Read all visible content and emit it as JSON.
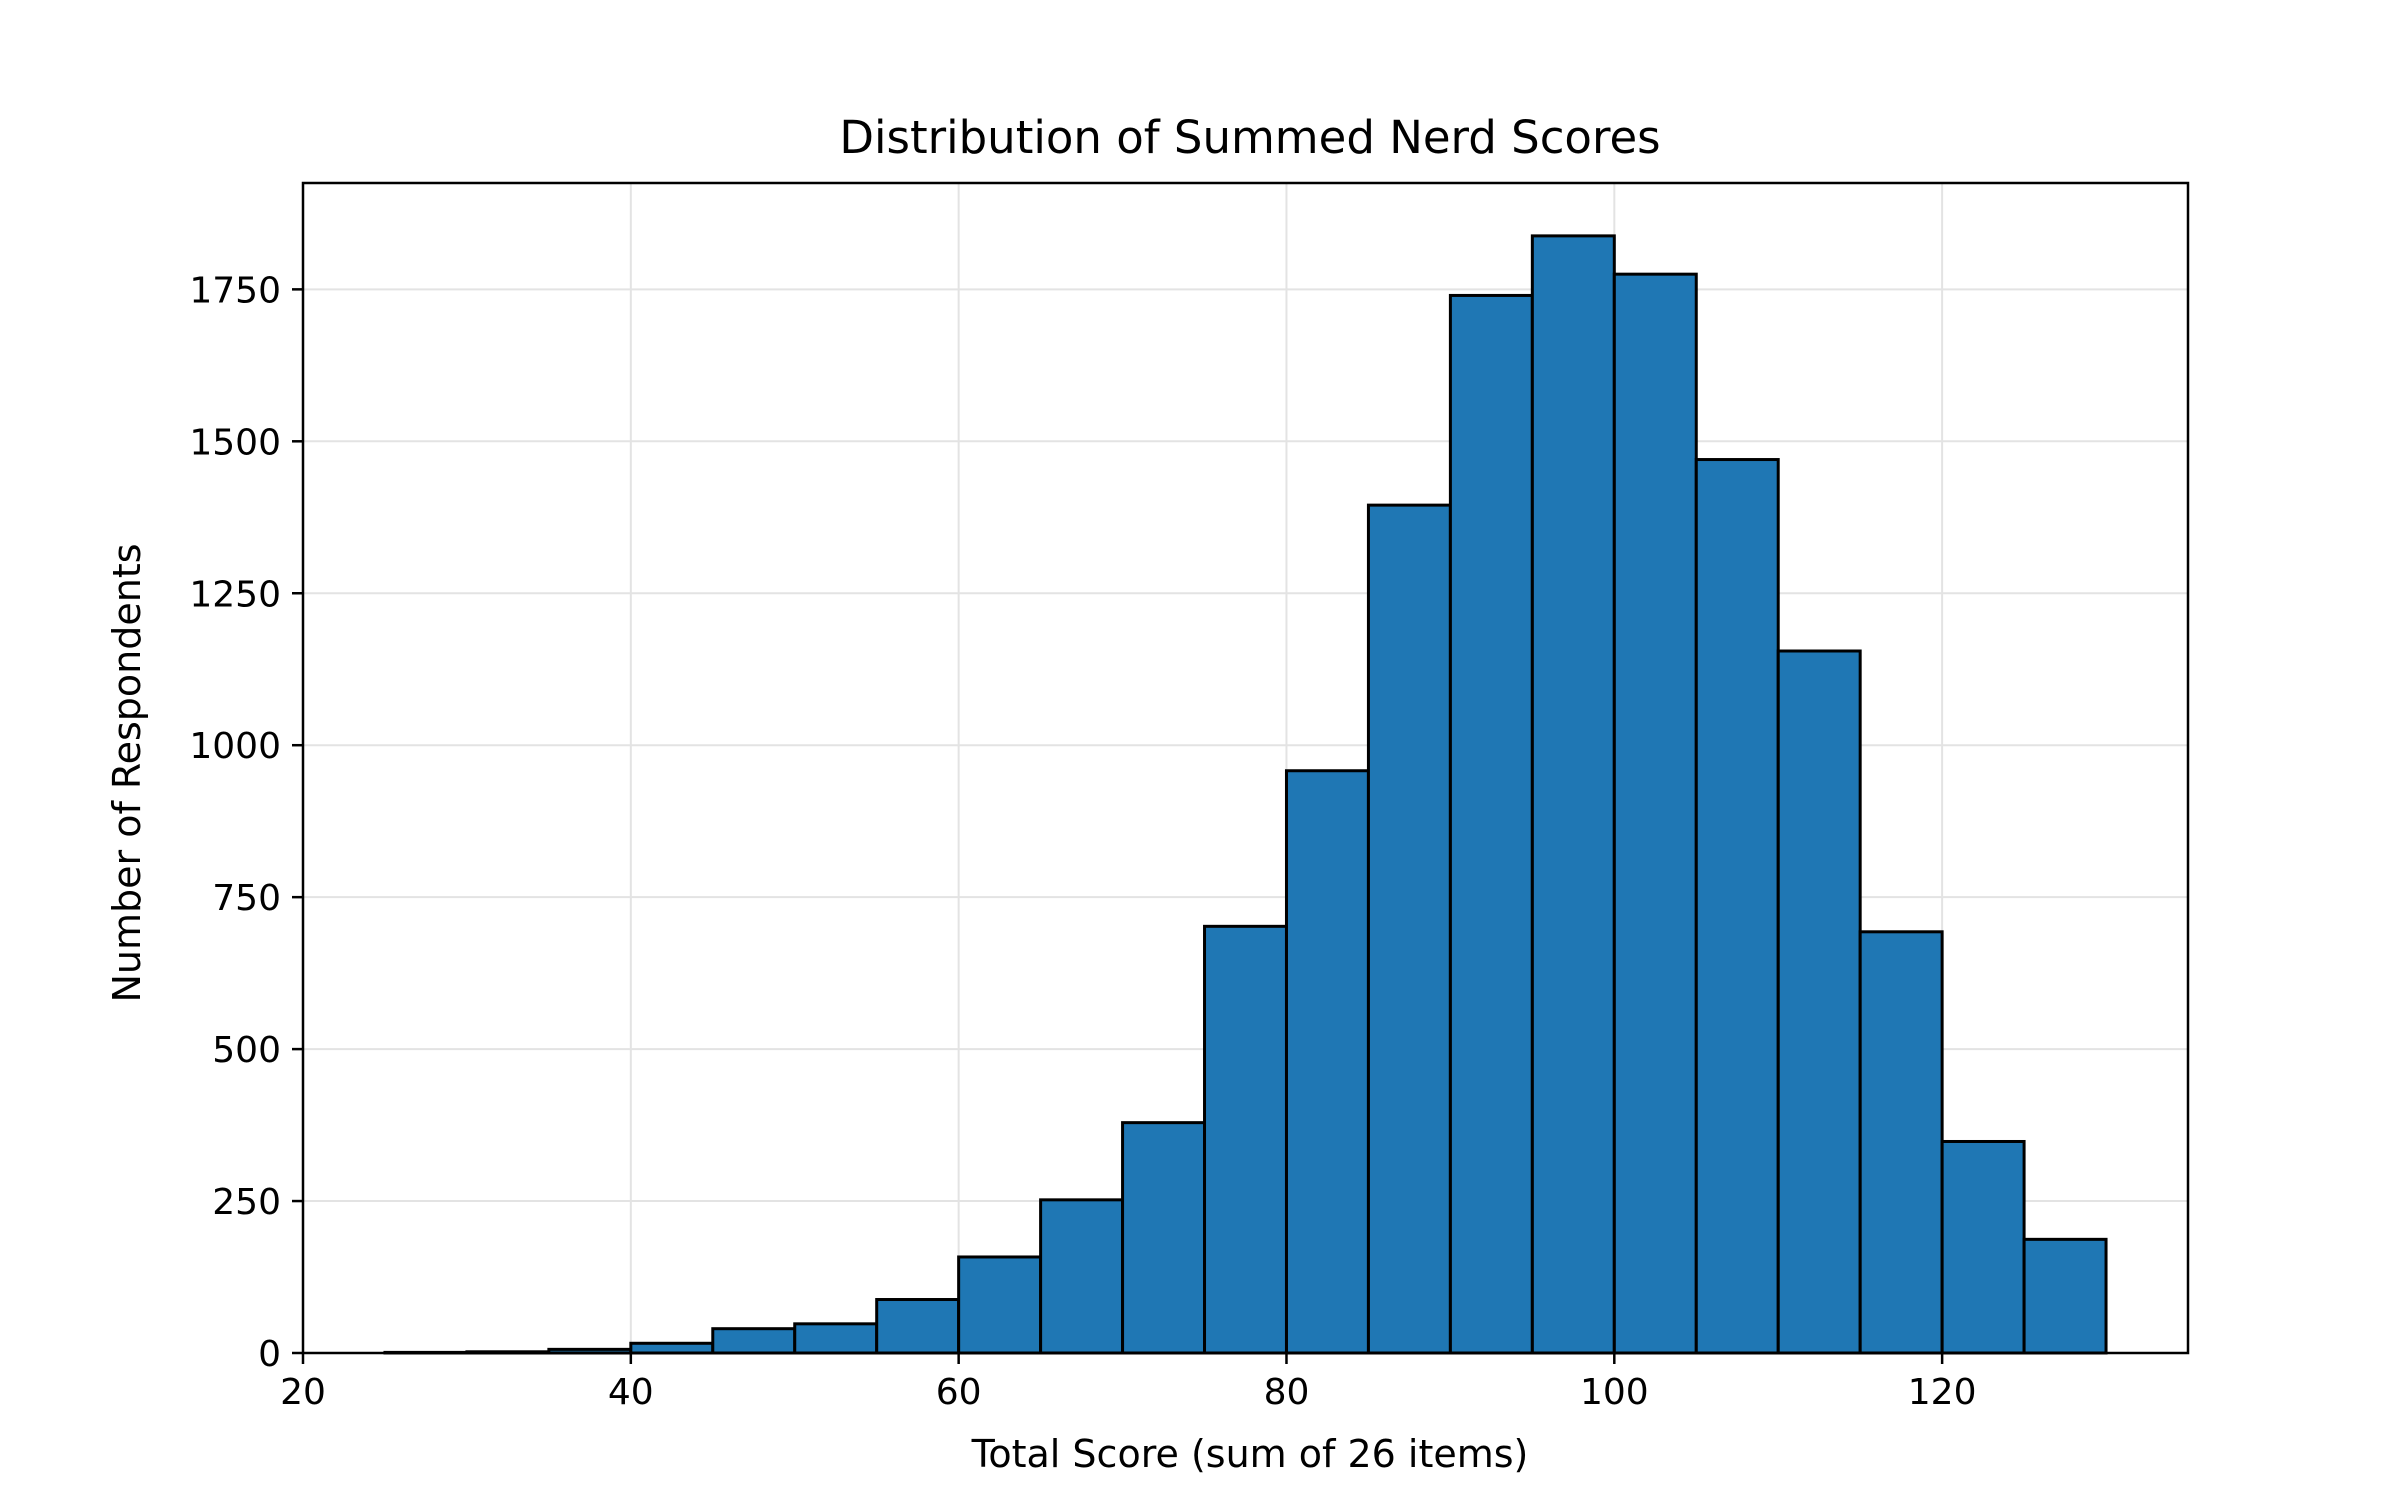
{
  "chart_data": {
    "type": "bar",
    "title": "Distribution of Summed Nerd Scores",
    "xlabel": "Total Score (sum of 26 items)",
    "ylabel": "Number of Respondents",
    "xlim": [
      20,
      135
    ],
    "ylim": [
      0,
      1925
    ],
    "xticks": [
      20,
      40,
      60,
      80,
      100,
      120
    ],
    "yticks": [
      0,
      250,
      500,
      750,
      1000,
      1250,
      1500,
      1750
    ],
    "grid": true,
    "bar_color": "#1f77b4",
    "edge_color": "#000000",
    "bins": [
      {
        "start": 25,
        "end": 30,
        "count": 1
      },
      {
        "start": 30,
        "end": 35,
        "count": 2
      },
      {
        "start": 35,
        "end": 40,
        "count": 6
      },
      {
        "start": 40,
        "end": 45,
        "count": 16
      },
      {
        "start": 45,
        "end": 50,
        "count": 40
      },
      {
        "start": 50,
        "end": 55,
        "count": 48
      },
      {
        "start": 55,
        "end": 60,
        "count": 88
      },
      {
        "start": 60,
        "end": 65,
        "count": 158
      },
      {
        "start": 65,
        "end": 70,
        "count": 252
      },
      {
        "start": 70,
        "end": 75,
        "count": 379
      },
      {
        "start": 75,
        "end": 80,
        "count": 702
      },
      {
        "start": 80,
        "end": 85,
        "count": 958
      },
      {
        "start": 85,
        "end": 90,
        "count": 1395
      },
      {
        "start": 90,
        "end": 95,
        "count": 1740
      },
      {
        "start": 95,
        "end": 100,
        "count": 1838
      },
      {
        "start": 100,
        "end": 105,
        "count": 1775
      },
      {
        "start": 105,
        "end": 110,
        "count": 1470
      },
      {
        "start": 110,
        "end": 115,
        "count": 1155
      },
      {
        "start": 115,
        "end": 120,
        "count": 693
      },
      {
        "start": 120,
        "end": 125,
        "count": 348
      },
      {
        "start": 125,
        "end": 130,
        "count": 187
      }
    ]
  }
}
